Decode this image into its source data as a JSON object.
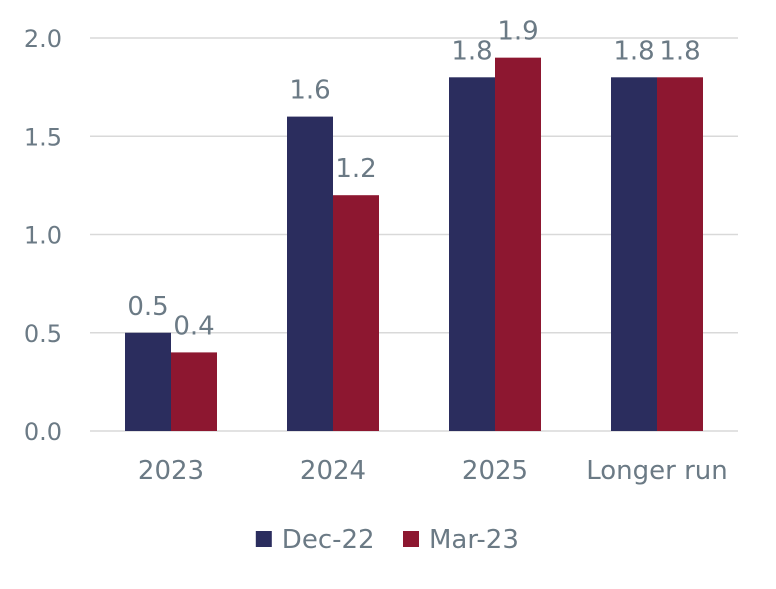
{
  "chart_data": {
    "type": "bar",
    "categories": [
      "2023",
      "2024",
      "2025",
      "Longer run"
    ],
    "series": [
      {
        "name": "Dec-22",
        "values": [
          0.5,
          1.6,
          1.8,
          1.8
        ],
        "labels": [
          "0.5",
          "1.6",
          "1.8",
          "1.8"
        ],
        "color": "#2b2d5e"
      },
      {
        "name": "Mar-23",
        "values": [
          0.4,
          1.2,
          1.9,
          1.8
        ],
        "labels": [
          "0.4",
          "1.2",
          "1.9",
          "1.8"
        ],
        "color": "#8d1730"
      }
    ],
    "y_ticks": [
      "0.0",
      "0.5",
      "1.0",
      "1.5",
      "2.0"
    ],
    "ylim": [
      0,
      2.0
    ],
    "grid": true,
    "legend_position": "bottom-center",
    "grid_color": "#d9d9d9"
  }
}
